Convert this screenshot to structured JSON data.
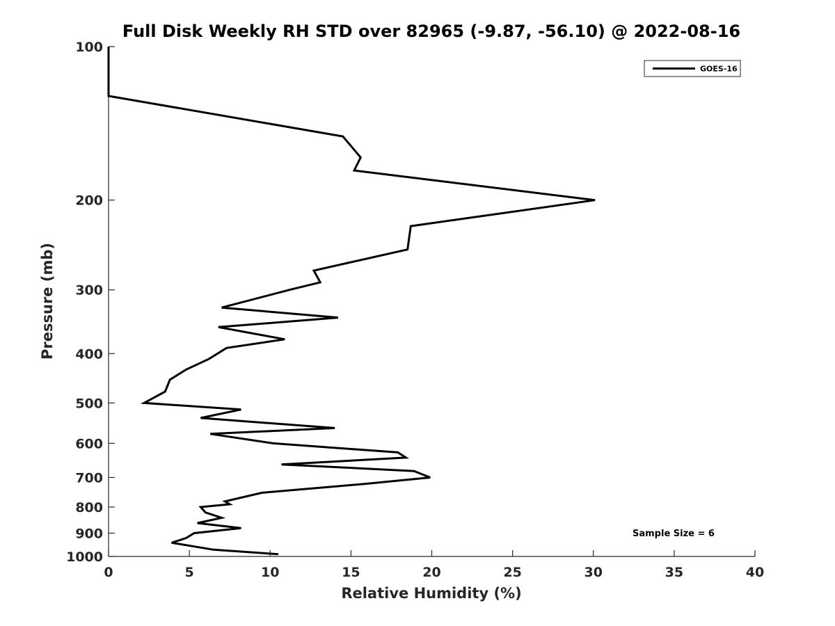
{
  "chart_data": {
    "type": "line",
    "title": "Full Disk Weekly RH STD over 82965 (-9.87, -56.10) @ 2022-08-16",
    "xlabel": "Relative Humidity (%)",
    "ylabel": "Pressure (mb)",
    "xlim": [
      0,
      40
    ],
    "ylim": [
      100,
      1000
    ],
    "y_scale": "log",
    "y_reversed": true,
    "grid": false,
    "x_ticks": [
      0,
      5,
      10,
      15,
      20,
      25,
      30,
      35,
      40
    ],
    "y_ticks": [
      100,
      200,
      300,
      400,
      500,
      600,
      700,
      800,
      900,
      1000
    ],
    "legend_position": "top-right",
    "series": [
      {
        "name": "GOES-16",
        "color": "#000000",
        "points": [
          [
            0,
            100
          ],
          [
            0,
            125
          ],
          [
            14.5,
            150
          ],
          [
            15.6,
            165
          ],
          [
            15.2,
            175
          ],
          [
            30.1,
            200
          ],
          [
            18.7,
            225
          ],
          [
            18.5,
            250
          ],
          [
            12.7,
            275
          ],
          [
            13.1,
            290
          ],
          [
            11.2,
            300
          ],
          [
            7.0,
            325
          ],
          [
            14.2,
            340
          ],
          [
            6.8,
            355
          ],
          [
            10.9,
            375
          ],
          [
            7.3,
            390
          ],
          [
            6.2,
            410
          ],
          [
            4.8,
            430
          ],
          [
            3.8,
            450
          ],
          [
            3.5,
            475
          ],
          [
            2.2,
            500
          ],
          [
            8.2,
            515
          ],
          [
            5.7,
            535
          ],
          [
            14.0,
            560
          ],
          [
            6.3,
            575
          ],
          [
            10.2,
            600
          ],
          [
            17.9,
            625
          ],
          [
            18.4,
            640
          ],
          [
            10.7,
            660
          ],
          [
            18.9,
            680
          ],
          [
            19.9,
            700
          ],
          [
            16.0,
            720
          ],
          [
            9.5,
            750
          ],
          [
            7.2,
            780
          ],
          [
            7.5,
            790
          ],
          [
            5.7,
            800
          ],
          [
            6.0,
            820
          ],
          [
            7.0,
            840
          ],
          [
            5.5,
            860
          ],
          [
            8.2,
            880
          ],
          [
            5.3,
            900
          ],
          [
            4.8,
            920
          ],
          [
            3.9,
            940
          ],
          [
            6.5,
            970
          ],
          [
            10.5,
            990
          ]
        ]
      }
    ],
    "annotations": [
      "Sample Size = 6"
    ]
  }
}
